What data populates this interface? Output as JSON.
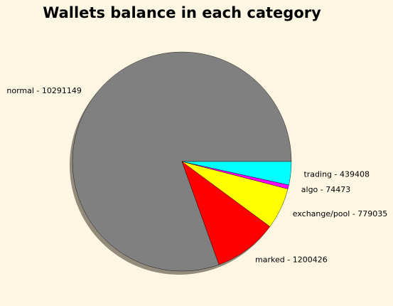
{
  "chart_data": {
    "type": "pie",
    "title": "Wallets balance in each category",
    "start_angle_deg": 0,
    "direction": "counterclockwise",
    "shadow": true,
    "edge_color": "#000000",
    "background": "#fdf6e3",
    "slices": [
      {
        "category": "normal",
        "label": "normal - 10291149",
        "value": 10291149,
        "color": "#808080"
      },
      {
        "category": "marked",
        "label": "marked - 1200426",
        "value": 1200426,
        "color": "#ff0000"
      },
      {
        "category": "exchange/pool",
        "label": "exchange/pool - 779035",
        "value": 779035,
        "color": "#ffff00"
      },
      {
        "category": "algo",
        "label": "algo - 74473",
        "value": 74473,
        "color": "#ff00ff"
      },
      {
        "category": "trading",
        "label": "trading - 439408",
        "value": 439408,
        "color": "#00ffff"
      }
    ]
  }
}
